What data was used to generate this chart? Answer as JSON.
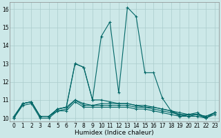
{
  "xlabel": "Humidex (Indice chaleur)",
  "bg_color": "#cce8e8",
  "grid_color": "#aacccc",
  "line_color": "#006666",
  "xlim": [
    -0.5,
    23.5
  ],
  "ylim": [
    9.8,
    16.4
  ],
  "yticks": [
    10,
    11,
    12,
    13,
    14,
    15,
    16
  ],
  "xticks": [
    0,
    1,
    2,
    3,
    4,
    5,
    6,
    7,
    8,
    9,
    10,
    11,
    12,
    13,
    14,
    15,
    16,
    17,
    18,
    19,
    20,
    21,
    22,
    23
  ],
  "series": [
    {
      "x": [
        0,
        1,
        2,
        3,
        4,
        5,
        6,
        7,
        8,
        9,
        10,
        11,
        12,
        13,
        14,
        15,
        16,
        17,
        18,
        19,
        20,
        21,
        22,
        23
      ],
      "y": [
        10.1,
        10.8,
        10.9,
        10.1,
        10.1,
        10.5,
        10.6,
        13.0,
        12.8,
        11.0,
        14.5,
        15.3,
        11.4,
        16.1,
        15.6,
        12.5,
        12.5,
        11.1,
        10.4,
        10.1,
        10.2,
        10.3,
        10.0,
        10.3
      ]
    },
    {
      "x": [
        3,
        4,
        5,
        6,
        7,
        8,
        9,
        10,
        11,
        12,
        13,
        14,
        15,
        16,
        17,
        18,
        19,
        20,
        21,
        22,
        23
      ],
      "y": [
        10.1,
        10.1,
        10.5,
        10.6,
        13.0,
        12.8,
        11.0,
        11.0,
        10.9,
        10.8,
        10.8,
        10.7,
        10.6,
        10.6,
        10.5,
        10.4,
        10.3,
        10.2,
        10.2,
        10.1,
        10.3
      ]
    },
    {
      "x": [
        0,
        1,
        2,
        3,
        4,
        5,
        6,
        7,
        8,
        9,
        10,
        11,
        12,
        13,
        14,
        15,
        16,
        17,
        18,
        19,
        20,
        21,
        22,
        23
      ],
      "y": [
        10.0,
        10.8,
        10.9,
        10.1,
        10.1,
        10.5,
        10.6,
        11.0,
        10.8,
        10.7,
        10.8,
        10.8,
        10.8,
        10.8,
        10.7,
        10.7,
        10.6,
        10.5,
        10.4,
        10.2,
        10.2,
        10.2,
        10.1,
        10.3
      ]
    },
    {
      "x": [
        0,
        1,
        2,
        3,
        4,
        5,
        6,
        7,
        8,
        9,
        10,
        11,
        12,
        13,
        14,
        15,
        16,
        17,
        18,
        19,
        20,
        21,
        22,
        23
      ],
      "y": [
        10.0,
        10.8,
        10.9,
        10.1,
        10.1,
        10.4,
        10.5,
        11.0,
        10.7,
        10.7,
        10.7,
        10.7,
        10.7,
        10.7,
        10.6,
        10.6,
        10.5,
        10.4,
        10.3,
        10.2,
        10.1,
        10.2,
        10.0,
        10.3
      ]
    },
    {
      "x": [
        0,
        1,
        2,
        3,
        4,
        5,
        6,
        7,
        8,
        9,
        10,
        11,
        12,
        13,
        14,
        15,
        16,
        17,
        18,
        19,
        20,
        21,
        22,
        23
      ],
      "y": [
        10.0,
        10.7,
        10.8,
        10.0,
        10.0,
        10.4,
        10.4,
        10.9,
        10.6,
        10.6,
        10.6,
        10.6,
        10.6,
        10.6,
        10.5,
        10.5,
        10.4,
        10.3,
        10.2,
        10.1,
        10.1,
        10.1,
        10.0,
        10.2
      ]
    }
  ]
}
